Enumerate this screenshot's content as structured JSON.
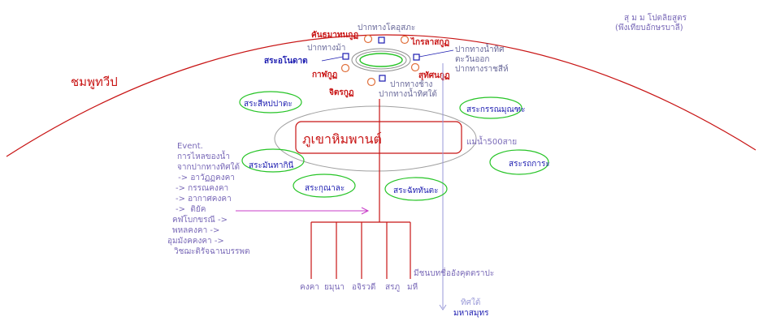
{
  "colors": {
    "arc": "#c81414",
    "river": "#c81414",
    "lake_ring": "#26c426",
    "mountain_ring": "#a0a0a0",
    "pond_marker": "#e0703c",
    "gate_marker": "#1c1cb0",
    "flow_arrow": "#c83cc8",
    "navy_text": "#1c1cb0",
    "red_text": "#c81414",
    "purple_text": "#7a6ab8"
  },
  "labels": {
    "source_note_line1": "สุ ม ม โปตลิยสูตร",
    "source_note_line2": "(พึงเทียบอักษรบาลี)",
    "continent": "ชมพูทวีป",
    "mountain": "ภูเขาหิมพานต์",
    "five_hundred_rivers": "แม่น้ำ500สาย",
    "ocean": "มหาสมุทร",
    "south_direction": "ทิศใต้",
    "river_mouth_note": "มีชนบทชื่ออังคุตตราปะ"
  },
  "gates": {
    "north": "ปากทางโคอุสภะ",
    "west": "ปากทางม้า",
    "east_line1": "ปากทางน้ำทิศ",
    "east_line2": "ตะวันออก",
    "east_line3": "ปากทางราชสีห์",
    "south_line1": "ปากทางช้าง",
    "south_line2": "ปากทางน้ำทิศใต้"
  },
  "central_ponds": {
    "northwest": "คันธมาทนกูฏ",
    "northeast": "ไกรลาสกูฏ",
    "west_lake": "สระอโนดาต",
    "southwest": "กาฬกูฏ",
    "southeast": "สุทัศนกูฏ",
    "south": "จิตรกูฏ"
  },
  "lakes": {
    "sihapapata": "สระสีหปปาตะ",
    "kannamunda": "สระกรรณมุณฑะ",
    "mandakini": "สระมันทากินี",
    "rathakara": "สระรถการะ",
    "kunala": "สระกุณาละ",
    "chaddanta": "สระฉัททันตะ"
  },
  "event_note": {
    "lines": [
      "Event.",
      "การไหลของน้ำ",
      "จากปากทางทิศใต้",
      " -> อาวัฏฏคงคา",
      "-> กรรณคงคา",
      "-> อากาศคงคา",
      "->  ติยัค",
      "คฬโบกขรณี ->",
      "พหลคงคา ->",
      "อุมมังคคงคา ->",
      "วิชฌะติรัจฉานบรรพต"
    ]
  },
  "rivers": [
    "คงคา",
    "ยมุนา",
    "อจิรวดี",
    "สรภู",
    "มหี"
  ]
}
